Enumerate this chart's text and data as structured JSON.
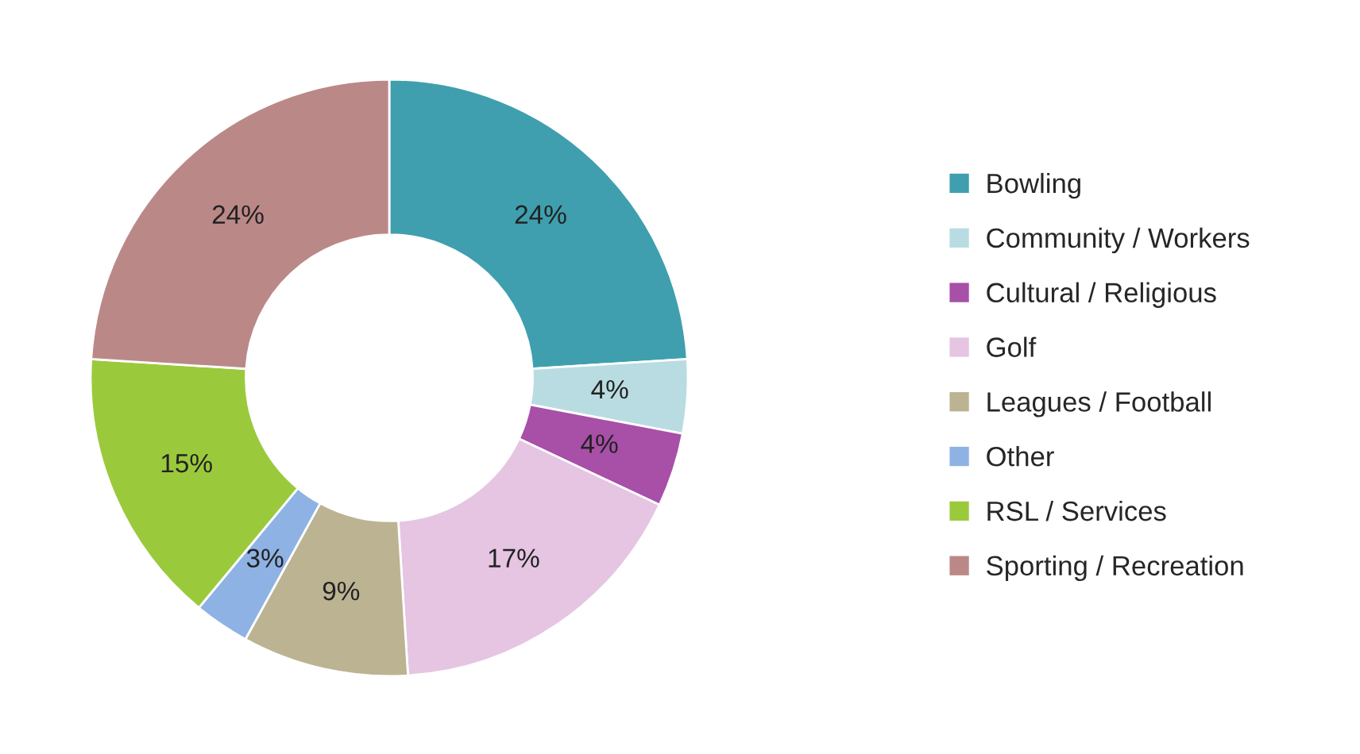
{
  "chart_data": {
    "type": "donut",
    "categories": [
      "Bowling",
      "Community / Workers",
      "Cultural / Religious",
      "Golf",
      "Leagues / Football",
      "Other",
      "RSL / Services",
      "Sporting / Recreation"
    ],
    "values": [
      24,
      4,
      4,
      17,
      9,
      3,
      15,
      24
    ],
    "colors": [
      "#3f9fae",
      "#b9dce2",
      "#a84fa8",
      "#e5c5e2",
      "#bcb392",
      "#8eb2e3",
      "#9bc93c",
      "#bb8888"
    ],
    "value_labels": [
      "24%",
      "4%",
      "4%",
      "17%",
      "9%",
      "3%",
      "15%",
      "24%"
    ],
    "legend": "right"
  }
}
